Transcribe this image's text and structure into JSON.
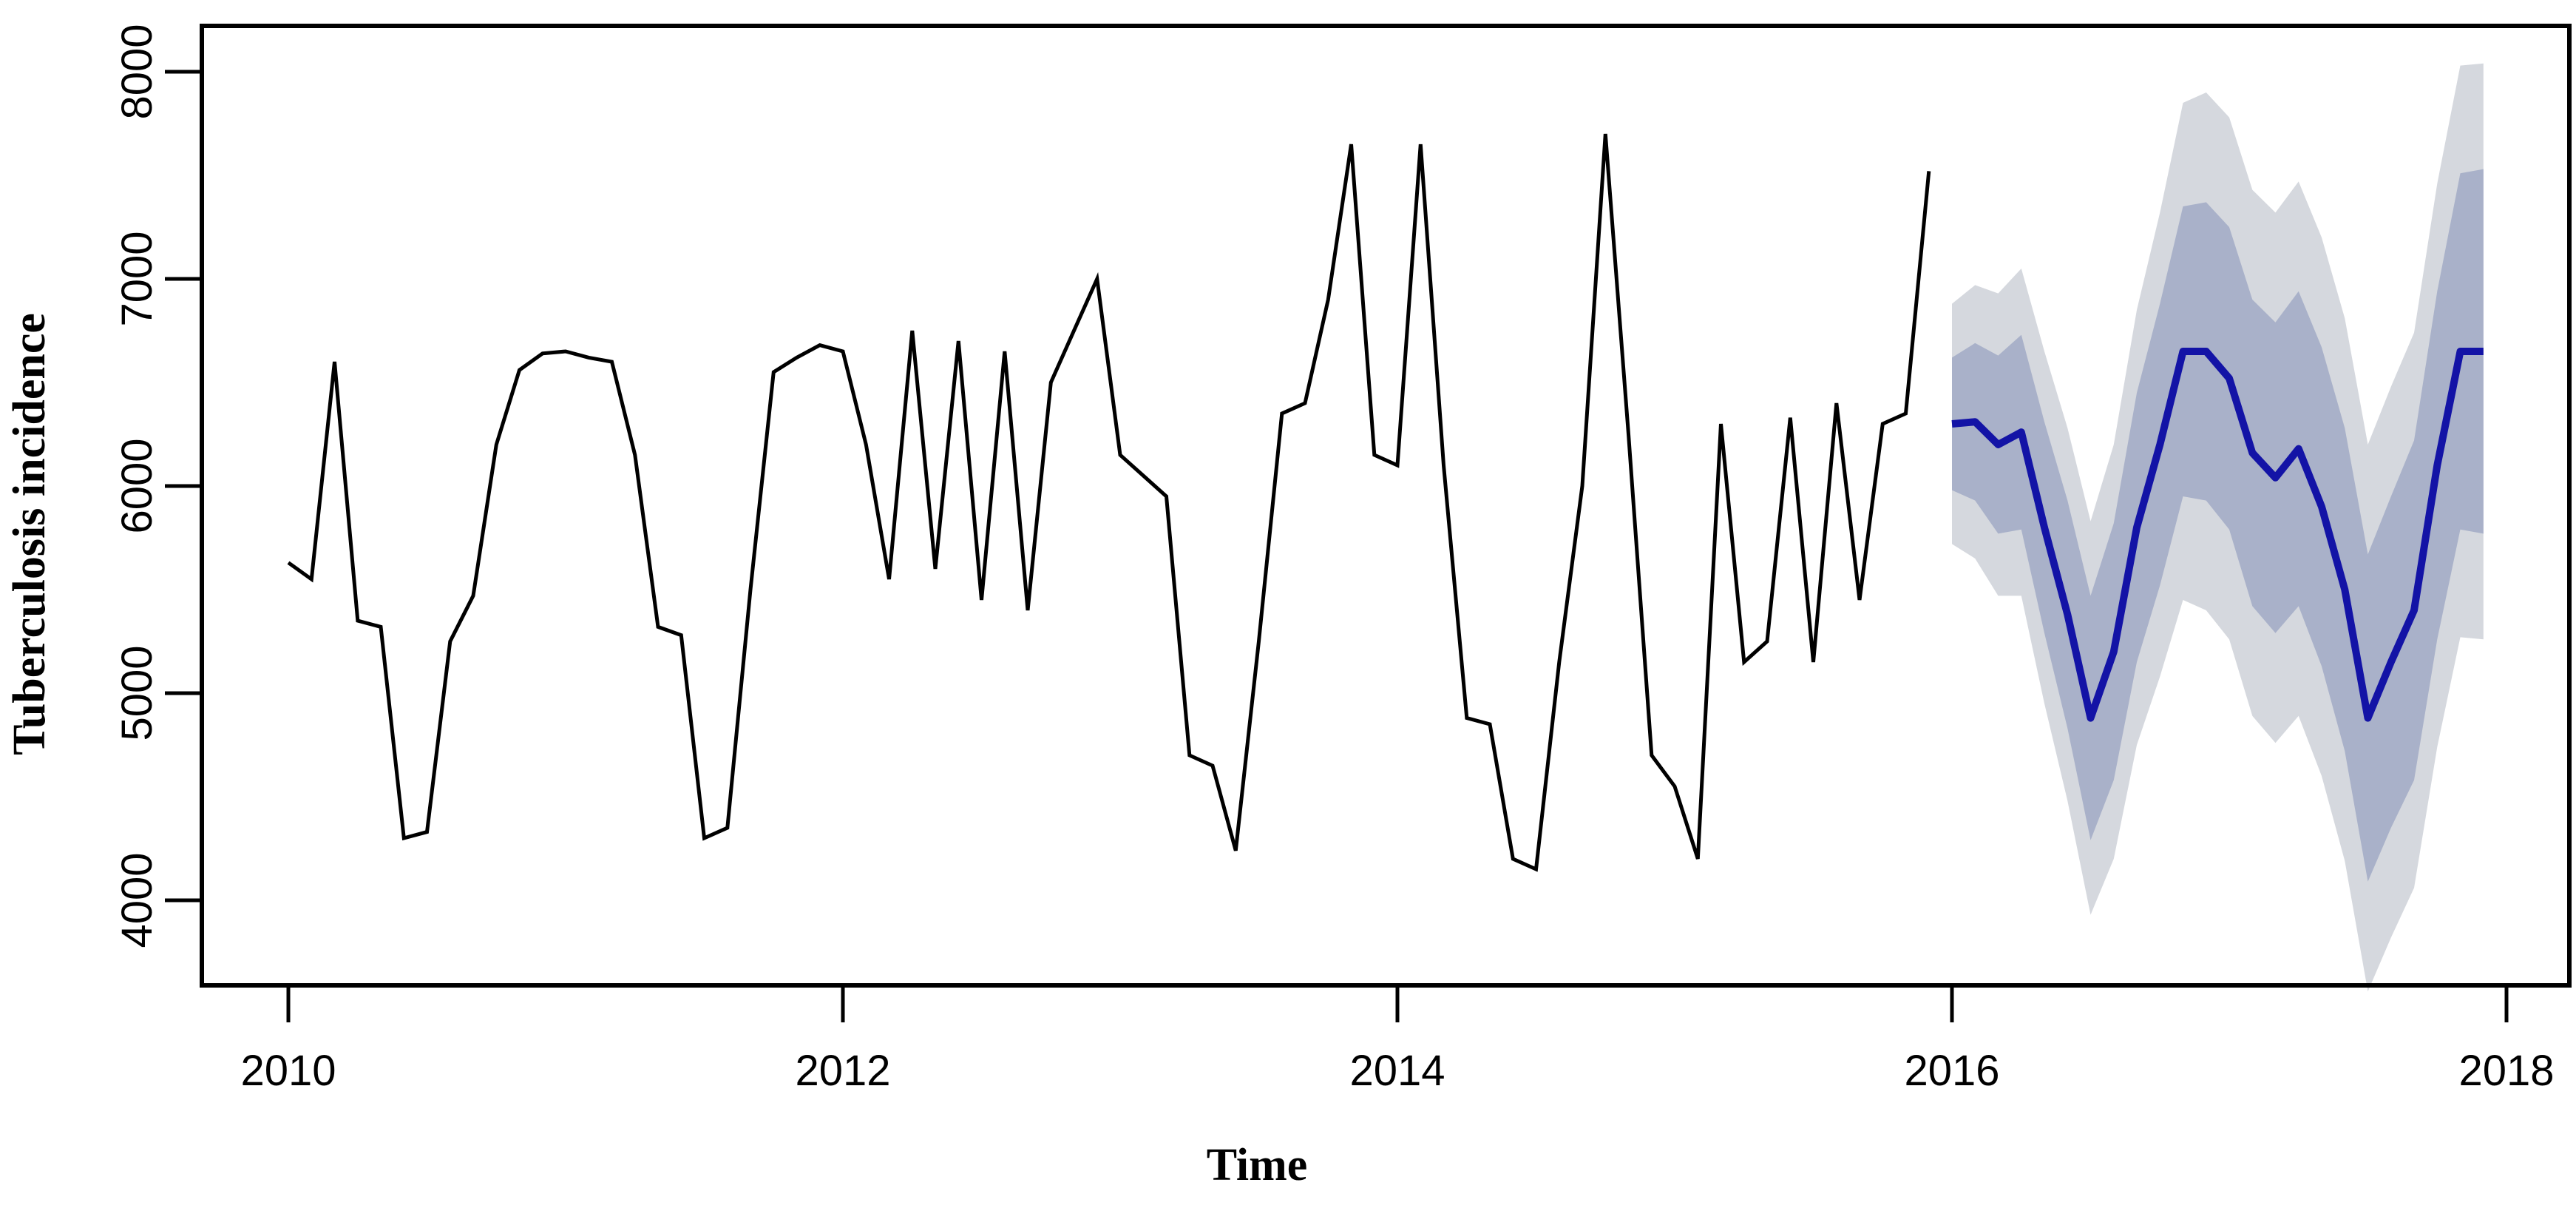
{
  "figure": {
    "kind": "time-series forecast plot (R style)",
    "background_color": "#ffffff",
    "ylabel": "Tuberculosis incidence",
    "xlabel": "Time"
  },
  "chart_data": {
    "type": "line",
    "title": "",
    "xlabel": "Time",
    "ylabel": "Tuberculosis incidence",
    "x_tick_labels": [
      "2010",
      "2012",
      "2014",
      "2016",
      "2018"
    ],
    "x_tick_values": [
      2010,
      2012,
      2014,
      2016,
      2018
    ],
    "y_tick_labels": [
      "4000",
      "5000",
      "6000",
      "7000",
      "8000"
    ],
    "y_tick_values": [
      4000,
      5000,
      6000,
      7000,
      8000
    ],
    "ylim": [
      3590,
      8220
    ],
    "xlim": [
      2009.69,
      2018.23
    ],
    "grid": false,
    "legend_position": "none",
    "frequency": "monthly",
    "series": [
      {
        "name": "observed",
        "role": "historical data",
        "color": "#000000",
        "start_year": 2010,
        "start_month": 1,
        "values": [
          5630,
          5550,
          6600,
          5350,
          5320,
          4300,
          4330,
          5250,
          5470,
          6200,
          6560,
          6640,
          6650,
          6620,
          6600,
          6150,
          5320,
          5280,
          4300,
          4350,
          5500,
          6550,
          6620,
          6680,
          6650,
          6200,
          5550,
          6750,
          5600,
          6700,
          5450,
          6650,
          5400,
          6500,
          6750,
          7000,
          6150,
          6050,
          5950,
          4700,
          4650,
          4240,
          5250,
          6350,
          6400,
          6900,
          7650,
          6150,
          6100,
          7650,
          6100,
          4880,
          4850,
          4200,
          4150,
          5150,
          6000,
          7700,
          6250,
          4700,
          4550,
          4200,
          6300,
          5150,
          5250,
          6330,
          5150,
          6400,
          5450,
          6300,
          6350,
          7520
        ]
      },
      {
        "name": "forecast-mean",
        "role": "point forecast",
        "color": "#1313a6",
        "start_year": 2016,
        "start_month": 1,
        "values": [
          6300,
          6310,
          6200,
          6260,
          5800,
          5380,
          4880,
          5200,
          5800,
          6200,
          6650,
          6650,
          6520,
          6160,
          6040,
          6180,
          5900,
          5500,
          4880,
          5150,
          5400,
          6100,
          6650,
          6650
        ]
      },
      {
        "name": "forecast-80pct-interval",
        "role": "inner confidence band",
        "color": "#a9b1c9",
        "start_year": 2016,
        "start_month": 1,
        "upper": [
          6620,
          6690,
          6630,
          6730,
          6310,
          5930,
          5470,
          5820,
          6450,
          6880,
          7350,
          7370,
          7250,
          6900,
          6790,
          6940,
          6670,
          6280,
          5670,
          5950,
          6220,
          6940,
          7510,
          7530
        ],
        "lower": [
          5980,
          5930,
          5770,
          5790,
          5290,
          4830,
          4290,
          4580,
          5150,
          5520,
          5950,
          5930,
          5790,
          5420,
          5290,
          5420,
          5130,
          4720,
          4090,
          4350,
          4580,
          5260,
          5790,
          5770
        ]
      },
      {
        "name": "forecast-95pct-interval",
        "role": "outer confidence band",
        "color": "#d5d8de",
        "start_year": 2016,
        "start_month": 1,
        "upper": [
          6880,
          6970,
          6930,
          7050,
          6650,
          6280,
          5830,
          6200,
          6850,
          7320,
          7850,
          7900,
          7780,
          7430,
          7320,
          7470,
          7200,
          6810,
          6200,
          6480,
          6740,
          7460,
          8030,
          8040
        ],
        "lower": [
          5720,
          5650,
          5470,
          5470,
          4950,
          4480,
          3930,
          4200,
          4750,
          5080,
          5450,
          5400,
          5260,
          4890,
          4760,
          4890,
          4600,
          4190,
          3560,
          3820,
          4060,
          4740,
          5270,
          5260
        ]
      }
    ]
  }
}
